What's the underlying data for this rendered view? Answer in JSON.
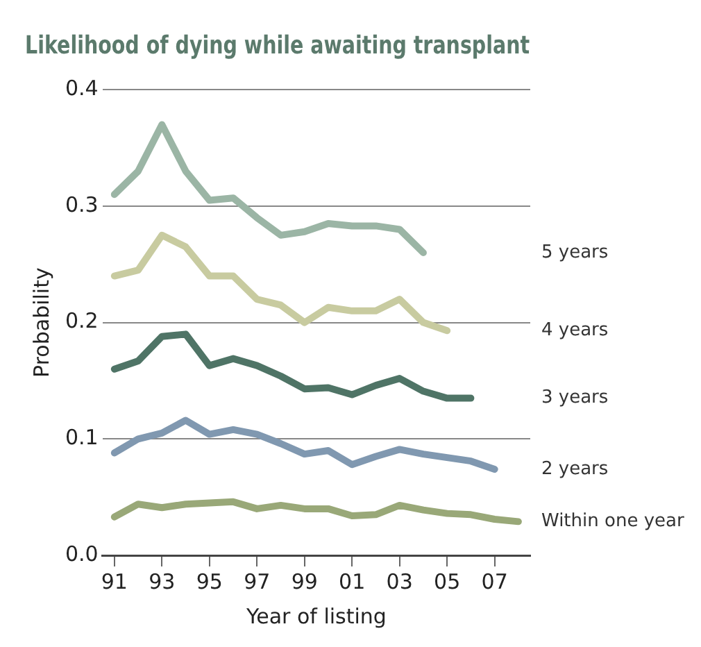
{
  "chart_data": {
    "type": "line",
    "title": "Likelihood of dying while awaiting transplant",
    "xlabel": "Year of listing",
    "ylabel": "Probability",
    "xlim": [
      1990.5,
      2008.5
    ],
    "xticks": [
      {
        "value": 1991,
        "label": "91"
      },
      {
        "value": 1993,
        "label": "93"
      },
      {
        "value": 1995,
        "label": "95"
      },
      {
        "value": 1997,
        "label": "97"
      },
      {
        "value": 1999,
        "label": "99"
      },
      {
        "value": 2001,
        "label": "01"
      },
      {
        "value": 2003,
        "label": "03"
      },
      {
        "value": 2005,
        "label": "05"
      },
      {
        "value": 2007,
        "label": "07"
      }
    ],
    "ylim": [
      0,
      0.4
    ],
    "yticks": [
      {
        "value": 0,
        "label": "0.0"
      },
      0.1,
      0.2,
      0.3,
      0.4
    ],
    "grid": "y",
    "legend": false,
    "marker": "none",
    "line_style": "solid",
    "series": [
      {
        "name": "5 years",
        "color": "#9bb5a5",
        "x": [
          1991,
          1992,
          1993,
          1994,
          1995,
          1996,
          1997,
          1998,
          1999,
          2000,
          2001,
          2002,
          2003,
          2004
        ],
        "values": [
          0.31,
          0.33,
          0.37,
          0.33,
          0.305,
          0.307,
          0.29,
          0.275,
          0.278,
          0.285,
          0.283,
          0.283,
          0.28,
          0.26
        ]
      },
      {
        "name": "4 years",
        "color": "#c8cba0",
        "x": [
          1991,
          1992,
          1993,
          1994,
          1995,
          1996,
          1997,
          1998,
          1999,
          2000,
          2001,
          2002,
          2003,
          2004,
          2005
        ],
        "values": [
          0.24,
          0.245,
          0.275,
          0.265,
          0.24,
          0.24,
          0.22,
          0.215,
          0.2,
          0.213,
          0.21,
          0.21,
          0.22,
          0.2,
          0.193
        ]
      },
      {
        "name": "3 years",
        "color": "#4f7466",
        "x": [
          1991,
          1992,
          1993,
          1994,
          1995,
          1996,
          1997,
          1998,
          1999,
          2000,
          2001,
          2002,
          2003,
          2004,
          2005,
          2006
        ],
        "values": [
          0.16,
          0.167,
          0.188,
          0.19,
          0.163,
          0.169,
          0.163,
          0.154,
          0.143,
          0.144,
          0.138,
          0.146,
          0.152,
          0.141,
          0.135,
          0.135
        ]
      },
      {
        "name": "2 years",
        "color": "#8098b0",
        "x": [
          1991,
          1992,
          1993,
          1994,
          1995,
          1996,
          1997,
          1998,
          1999,
          2000,
          2001,
          2002,
          2003,
          2004,
          2005,
          2006,
          2007
        ],
        "values": [
          0.088,
          0.1,
          0.105,
          0.116,
          0.104,
          0.108,
          0.104,
          0.096,
          0.087,
          0.09,
          0.078,
          0.085,
          0.091,
          0.087,
          0.084,
          0.081,
          0.074
        ]
      },
      {
        "name": "Within one year",
        "color": "#99a878",
        "x": [
          1991,
          1992,
          1993,
          1994,
          1995,
          1996,
          1997,
          1998,
          1999,
          2000,
          2001,
          2002,
          2003,
          2004,
          2005,
          2006,
          2007,
          2008
        ],
        "values": [
          0.033,
          0.044,
          0.041,
          0.044,
          0.045,
          0.046,
          0.04,
          0.043,
          0.04,
          0.04,
          0.034,
          0.035,
          0.043,
          0.039,
          0.036,
          0.035,
          0.031,
          0.029
        ]
      }
    ]
  }
}
